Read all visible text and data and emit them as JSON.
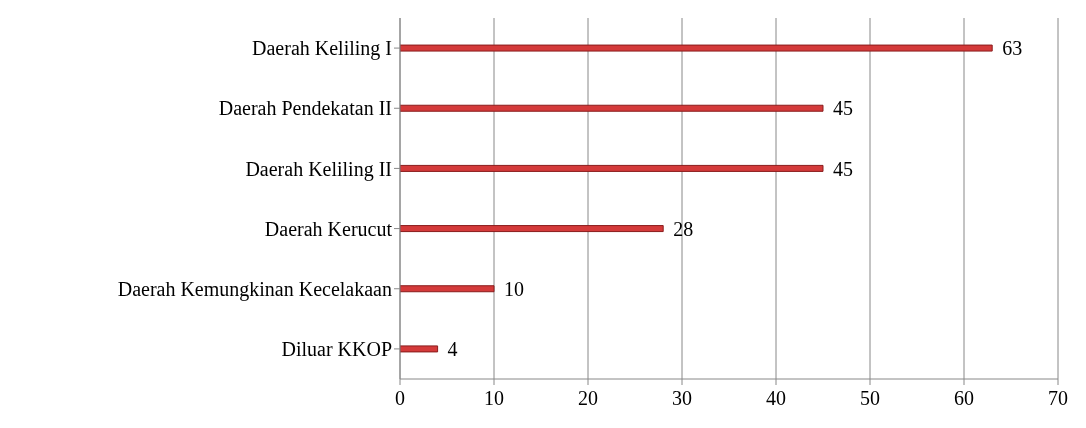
{
  "chart_data": {
    "type": "bar",
    "orientation": "horizontal",
    "categories": [
      "Daerah Keliling I",
      "Daerah Pendekatan II",
      "Daerah Keliling II",
      "Daerah Kerucut",
      "Daerah Kemungkinan Kecelakaan",
      "Diluar KKOP"
    ],
    "values": [
      63,
      45,
      45,
      28,
      10,
      4
    ],
    "color": "#d43a3a",
    "xlim": [
      0,
      70
    ],
    "xticks": [
      0,
      10,
      20,
      30,
      40,
      50,
      60,
      70
    ],
    "grid": "x",
    "data_labels": true
  }
}
